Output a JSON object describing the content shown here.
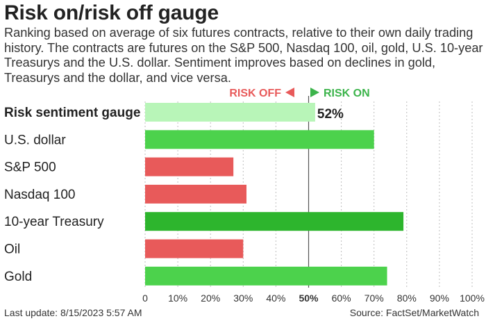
{
  "header": {
    "title": "Risk on/risk off gauge",
    "subtitle": "Ranking based on average of six futures contracts, relative to their own daily trading history. The contracts are futures on the S&P 500, Nasdaq 100, oil, gold, U.S. 10-year Treasurys and the U.S. dollar. Sentiment improves based on declines in gold, Treasurys and the dollar, and vice versa."
  },
  "legend": {
    "risk_off": "RISK OFF",
    "risk_on": "RISK ON",
    "risk_off_color": "#e85a5a",
    "risk_on_color": "#3cb44b"
  },
  "footer": {
    "last_update": "Last update: 8/15/2023 5:57 AM",
    "source": "Source: FactSet/MarketWatch"
  },
  "chart_data": {
    "type": "bar",
    "orientation": "horizontal",
    "categories": [
      "Risk sentiment gauge",
      "U.S. dollar",
      "S&P 500",
      "Nasdaq 100",
      "10-year Treasury",
      "Oil",
      "Gold"
    ],
    "values": [
      52,
      70,
      27,
      31,
      79,
      30,
      74
    ],
    "bar_colors": [
      "#b8f5b8",
      "#4cd24c",
      "#e85a5a",
      "#e85a5a",
      "#2db52d",
      "#e85a5a",
      "#4cd24c"
    ],
    "value_labels": [
      "52%",
      "",
      "",
      "",
      "",
      "",
      ""
    ],
    "x_ticks": [
      "0",
      "10%",
      "20%",
      "30%",
      "40%",
      "50%",
      "60%",
      "70%",
      "80%",
      "90%",
      "100%"
    ],
    "xlim": [
      0,
      100
    ],
    "grid": true,
    "midline": 50
  }
}
